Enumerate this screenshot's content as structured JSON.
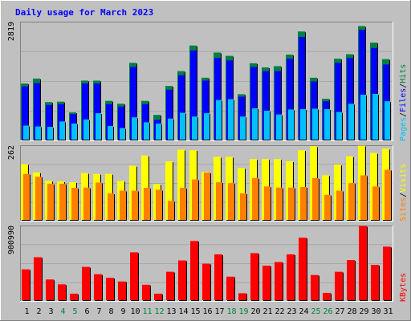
{
  "chart_data": [
    {
      "type": "bar",
      "panel": "hits",
      "title": "Daily usage for March 2023",
      "ymax_label": "2819",
      "ymax": 2819,
      "categories": [
        "1",
        "2",
        "3",
        "4",
        "5",
        "6",
        "7",
        "8",
        "9",
        "10",
        "11",
        "12",
        "13",
        "14",
        "15",
        "16",
        "17",
        "18",
        "19",
        "20",
        "21",
        "22",
        "23",
        "24",
        "25",
        "26",
        "27",
        "28",
        "29",
        "30",
        "31"
      ],
      "weekend_days": [
        "4",
        "5",
        "11",
        "12",
        "18",
        "19",
        "25",
        "26"
      ],
      "series": [
        {
          "name": "Hits",
          "color": "#008040",
          "values": [
            1360,
            1480,
            910,
            920,
            660,
            1430,
            1430,
            940,
            870,
            1860,
            940,
            600,
            1300,
            1660,
            2280,
            1500,
            2110,
            2030,
            1100,
            1850,
            1750,
            1780,
            2060,
            2620,
            1500,
            990,
            1960,
            2070,
            2750,
            2350,
            1950
          ]
        },
        {
          "name": "Files",
          "color": "#0000ff",
          "values": [
            1290,
            1370,
            840,
            860,
            620,
            1360,
            1360,
            860,
            800,
            1760,
            860,
            480,
            1210,
            1560,
            2160,
            1430,
            1980,
            1920,
            1040,
            1760,
            1660,
            1660,
            1960,
            2490,
            1410,
            930,
            1860,
            1980,
            2660,
            2220,
            1820
          ]
        },
        {
          "name": "Pages",
          "color": "#00c0ff",
          "values": [
            340,
            320,
            310,
            440,
            390,
            490,
            640,
            330,
            280,
            540,
            420,
            390,
            510,
            650,
            560,
            640,
            960,
            980,
            560,
            760,
            700,
            610,
            730,
            740,
            750,
            740,
            670,
            870,
            1090,
            1110,
            930
          ]
        }
      ],
      "legend": [
        {
          "text": "Pages",
          "color": "#00c0ff"
        },
        {
          "text": "/",
          "color": "#000000"
        },
        {
          "text": "Files",
          "color": "#0000ff"
        },
        {
          "text": "/",
          "color": "#000000"
        },
        {
          "text": "Hits",
          "color": "#008040"
        }
      ]
    },
    {
      "type": "bar",
      "panel": "visits",
      "ymax_label": "262",
      "ymax": 262,
      "categories": [
        "1",
        "2",
        "3",
        "4",
        "5",
        "6",
        "7",
        "8",
        "9",
        "10",
        "11",
        "12",
        "13",
        "14",
        "15",
        "16",
        "17",
        "18",
        "19",
        "20",
        "21",
        "22",
        "23",
        "24",
        "25",
        "26",
        "27",
        "28",
        "29",
        "30",
        "31"
      ],
      "series": [
        {
          "name": "Visits",
          "color": "#ffff00",
          "values": [
            200,
            170,
            140,
            138,
            135,
            168,
            165,
            165,
            140,
            194,
            231,
            128,
            210,
            252,
            250,
            172,
            226,
            226,
            186,
            218,
            218,
            218,
            210,
            250,
            264,
            160,
            198,
            228,
            266,
            240,
            255
          ]
        },
        {
          "name": "Sites",
          "color": "#ff8000",
          "values": [
            165,
            155,
            130,
            130,
            115,
            116,
            134,
            95,
            105,
            105,
            115,
            108,
            68,
            115,
            145,
            170,
            135,
            132,
            95,
            150,
            120,
            116,
            116,
            118,
            150,
            90,
            105,
            132,
            160,
            120,
            180
          ]
        }
      ],
      "legend": [
        {
          "text": "Sites",
          "color": "#ff8000"
        },
        {
          "text": "/",
          "color": "#000000"
        },
        {
          "text": "Visits",
          "color": "#ffff00"
        }
      ]
    },
    {
      "type": "bar",
      "panel": "kbytes",
      "ymax_label": "900990",
      "ymax": 900990,
      "categories": [
        "1",
        "2",
        "3",
        "4",
        "5",
        "6",
        "7",
        "8",
        "9",
        "10",
        "11",
        "12",
        "13",
        "14",
        "15",
        "16",
        "17",
        "18",
        "19",
        "20",
        "21",
        "22",
        "23",
        "24",
        "25",
        "26",
        "27",
        "28",
        "29",
        "30",
        "31"
      ],
      "series": [
        {
          "name": "KBytes",
          "color": "#ff0000",
          "values": [
            380000,
            530000,
            255000,
            195000,
            80000,
            410000,
            320000,
            275000,
            230000,
            590000,
            190000,
            80000,
            350000,
            490000,
            730000,
            450000,
            565000,
            290000,
            85000,
            580000,
            425000,
            470000,
            565000,
            770000,
            310000,
            90000,
            350000,
            495000,
            915000,
            435000,
            660000
          ]
        }
      ],
      "legend": [
        {
          "text": "KBytes",
          "color": "#ff0000"
        }
      ]
    }
  ]
}
